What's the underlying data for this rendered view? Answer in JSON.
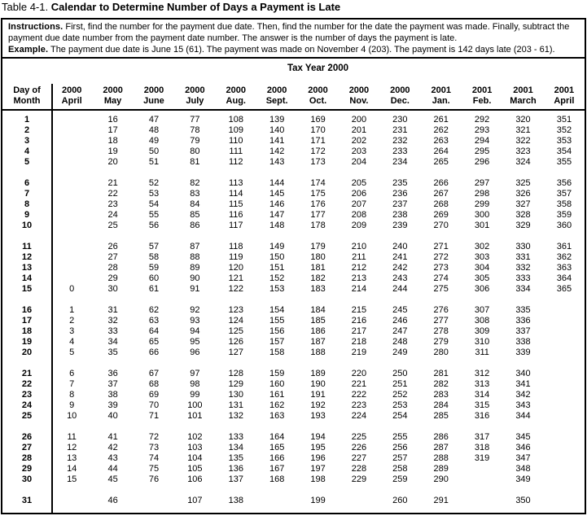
{
  "title": {
    "prefix": "Table 4-1.",
    "text": "Calendar to Determine Number of Days a Payment is Late"
  },
  "instructions": {
    "label": "Instructions.",
    "text": "First, find the number for the payment due date. Then, find the number for the date the payment was made. Finally, subtract the payment due date number from the payment date number. The answer is the number of days the payment is late."
  },
  "example": {
    "label": "Example.",
    "text": "The payment due date is June 15 (61). The payment was made on November 4 (203). The payment is 142 days late (203 - 61)."
  },
  "colors": {
    "text": "#000000",
    "background": "#ffffff",
    "border": "#000000"
  },
  "table": {
    "tax_year_header": "Tax Year 2000",
    "day_header_line1": "Day of",
    "day_header_line2": "Month",
    "month_columns": [
      {
        "year": "2000",
        "month": "April"
      },
      {
        "year": "2000",
        "month": "May"
      },
      {
        "year": "2000",
        "month": "June"
      },
      {
        "year": "2000",
        "month": "July"
      },
      {
        "year": "2000",
        "month": "Aug."
      },
      {
        "year": "2000",
        "month": "Sept."
      },
      {
        "year": "2000",
        "month": "Oct."
      },
      {
        "year": "2000",
        "month": "Nov."
      },
      {
        "year": "2000",
        "month": "Dec."
      },
      {
        "year": "2001",
        "month": "Jan."
      },
      {
        "year": "2001",
        "month": "Feb."
      },
      {
        "year": "2001",
        "month": "March"
      },
      {
        "year": "2001",
        "month": "April"
      }
    ],
    "row_groups": [
      {
        "rows": [
          {
            "day": "1",
            "values": [
              "",
              "16",
              "47",
              "77",
              "108",
              "139",
              "169",
              "200",
              "230",
              "261",
              "292",
              "320",
              "351"
            ]
          },
          {
            "day": "2",
            "values": [
              "",
              "17",
              "48",
              "78",
              "109",
              "140",
              "170",
              "201",
              "231",
              "262",
              "293",
              "321",
              "352"
            ]
          },
          {
            "day": "3",
            "values": [
              "",
              "18",
              "49",
              "79",
              "110",
              "141",
              "171",
              "202",
              "232",
              "263",
              "294",
              "322",
              "353"
            ]
          },
          {
            "day": "4",
            "values": [
              "",
              "19",
              "50",
              "80",
              "111",
              "142",
              "172",
              "203",
              "233",
              "264",
              "295",
              "323",
              "354"
            ]
          },
          {
            "day": "5",
            "values": [
              "",
              "20",
              "51",
              "81",
              "112",
              "143",
              "173",
              "204",
              "234",
              "265",
              "296",
              "324",
              "355"
            ]
          }
        ]
      },
      {
        "rows": [
          {
            "day": "6",
            "values": [
              "",
              "21",
              "52",
              "82",
              "113",
              "144",
              "174",
              "205",
              "235",
              "266",
              "297",
              "325",
              "356"
            ]
          },
          {
            "day": "7",
            "values": [
              "",
              "22",
              "53",
              "83",
              "114",
              "145",
              "175",
              "206",
              "236",
              "267",
              "298",
              "326",
              "357"
            ]
          },
          {
            "day": "8",
            "values": [
              "",
              "23",
              "54",
              "84",
              "115",
              "146",
              "176",
              "207",
              "237",
              "268",
              "299",
              "327",
              "358"
            ]
          },
          {
            "day": "9",
            "values": [
              "",
              "24",
              "55",
              "85",
              "116",
              "147",
              "177",
              "208",
              "238",
              "269",
              "300",
              "328",
              "359"
            ]
          },
          {
            "day": "10",
            "values": [
              "",
              "25",
              "56",
              "86",
              "117",
              "148",
              "178",
              "209",
              "239",
              "270",
              "301",
              "329",
              "360"
            ]
          }
        ]
      },
      {
        "rows": [
          {
            "day": "11",
            "values": [
              "",
              "26",
              "57",
              "87",
              "118",
              "149",
              "179",
              "210",
              "240",
              "271",
              "302",
              "330",
              "361"
            ]
          },
          {
            "day": "12",
            "values": [
              "",
              "27",
              "58",
              "88",
              "119",
              "150",
              "180",
              "211",
              "241",
              "272",
              "303",
              "331",
              "362"
            ]
          },
          {
            "day": "13",
            "values": [
              "",
              "28",
              "59",
              "89",
              "120",
              "151",
              "181",
              "212",
              "242",
              "273",
              "304",
              "332",
              "363"
            ]
          },
          {
            "day": "14",
            "values": [
              "",
              "29",
              "60",
              "90",
              "121",
              "152",
              "182",
              "213",
              "243",
              "274",
              "305",
              "333",
              "364"
            ]
          },
          {
            "day": "15",
            "values": [
              "0",
              "30",
              "61",
              "91",
              "122",
              "153",
              "183",
              "214",
              "244",
              "275",
              "306",
              "334",
              "365"
            ]
          }
        ]
      },
      {
        "rows": [
          {
            "day": "16",
            "values": [
              "1",
              "31",
              "62",
              "92",
              "123",
              "154",
              "184",
              "215",
              "245",
              "276",
              "307",
              "335",
              ""
            ]
          },
          {
            "day": "17",
            "values": [
              "2",
              "32",
              "63",
              "93",
              "124",
              "155",
              "185",
              "216",
              "246",
              "277",
              "308",
              "336",
              ""
            ]
          },
          {
            "day": "18",
            "values": [
              "3",
              "33",
              "64",
              "94",
              "125",
              "156",
              "186",
              "217",
              "247",
              "278",
              "309",
              "337",
              ""
            ]
          },
          {
            "day": "19",
            "values": [
              "4",
              "34",
              "65",
              "95",
              "126",
              "157",
              "187",
              "218",
              "248",
              "279",
              "310",
              "338",
              ""
            ]
          },
          {
            "day": "20",
            "values": [
              "5",
              "35",
              "66",
              "96",
              "127",
              "158",
              "188",
              "219",
              "249",
              "280",
              "311",
              "339",
              ""
            ]
          }
        ]
      },
      {
        "rows": [
          {
            "day": "21",
            "values": [
              "6",
              "36",
              "67",
              "97",
              "128",
              "159",
              "189",
              "220",
              "250",
              "281",
              "312",
              "340",
              ""
            ]
          },
          {
            "day": "22",
            "values": [
              "7",
              "37",
              "68",
              "98",
              "129",
              "160",
              "190",
              "221",
              "251",
              "282",
              "313",
              "341",
              ""
            ]
          },
          {
            "day": "23",
            "values": [
              "8",
              "38",
              "69",
              "99",
              "130",
              "161",
              "191",
              "222",
              "252",
              "283",
              "314",
              "342",
              ""
            ]
          },
          {
            "day": "24",
            "values": [
              "9",
              "39",
              "70",
              "100",
              "131",
              "162",
              "192",
              "223",
              "253",
              "284",
              "315",
              "343",
              ""
            ]
          },
          {
            "day": "25",
            "values": [
              "10",
              "40",
              "71",
              "101",
              "132",
              "163",
              "193",
              "224",
              "254",
              "285",
              "316",
              "344",
              ""
            ]
          }
        ]
      },
      {
        "rows": [
          {
            "day": "26",
            "values": [
              "11",
              "41",
              "72",
              "102",
              "133",
              "164",
              "194",
              "225",
              "255",
              "286",
              "317",
              "345",
              ""
            ]
          },
          {
            "day": "27",
            "values": [
              "12",
              "42",
              "73",
              "103",
              "134",
              "165",
              "195",
              "226",
              "256",
              "287",
              "318",
              "346",
              ""
            ]
          },
          {
            "day": "28",
            "values": [
              "13",
              "43",
              "74",
              "104",
              "135",
              "166",
              "196",
              "227",
              "257",
              "288",
              "319",
              "347",
              ""
            ]
          },
          {
            "day": "29",
            "values": [
              "14",
              "44",
              "75",
              "105",
              "136",
              "167",
              "197",
              "228",
              "258",
              "289",
              "",
              "348",
              ""
            ]
          },
          {
            "day": "30",
            "values": [
              "15",
              "45",
              "76",
              "106",
              "137",
              "168",
              "198",
              "229",
              "259",
              "290",
              "",
              "349",
              ""
            ]
          }
        ]
      },
      {
        "rows": [
          {
            "day": "31",
            "values": [
              "",
              "46",
              "",
              "107",
              "138",
              "",
              "199",
              "",
              "260",
              "291",
              "",
              "350",
              ""
            ]
          }
        ]
      }
    ]
  }
}
